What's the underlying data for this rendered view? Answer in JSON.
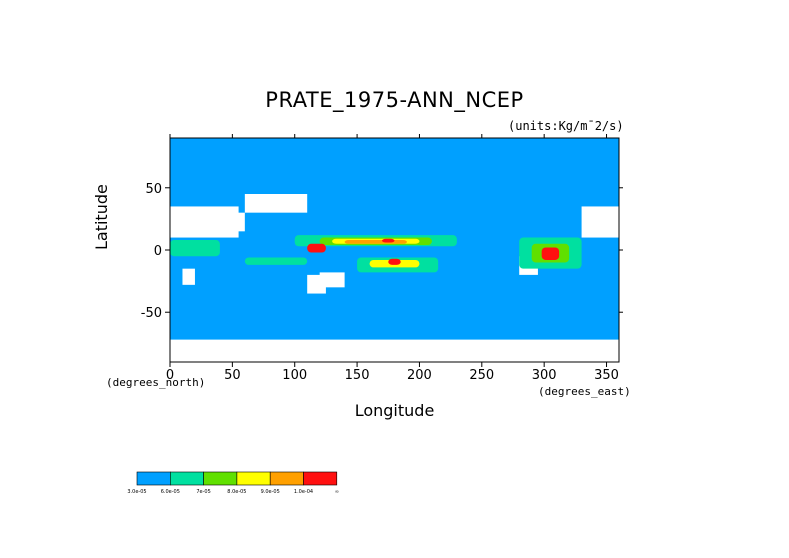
{
  "chart_data": {
    "type": "heatmap",
    "title": "PRATE_1975-ANN_NCEP",
    "units": "(units:Kg/m¯2/s)",
    "xlabel": "Longitude",
    "ylabel": "Latitude",
    "x_unit_note": "(degrees_east)",
    "y_unit_note": "(degrees_north)",
    "xlim": [
      0,
      360
    ],
    "ylim": [
      -90,
      90
    ],
    "xticks": [
      0,
      50,
      100,
      150,
      200,
      250,
      300,
      350
    ],
    "yticks": [
      -50,
      0,
      50
    ],
    "colorbar": {
      "colors": [
        "#00a0ff",
        "#00e0a0",
        "#60e000",
        "#ffff00",
        "#ffa000",
        "#ff1010"
      ],
      "labels": [
        "3.0e-05",
        "6.0e-05",
        "7e-05",
        "8.0e-05",
        "9.0e-05",
        "1.0e-04",
        "∞"
      ]
    },
    "no_data_color": "#ffffff",
    "regions": [
      {
        "level": 0,
        "lon": [
          0,
          360
        ],
        "lat": [
          -90,
          90
        ]
      },
      {
        "level": -1,
        "lon": [
          330,
          360
        ],
        "lat": [
          10,
          35
        ]
      },
      {
        "level": -1,
        "lon": [
          0,
          55
        ],
        "lat": [
          10,
          35
        ]
      },
      {
        "level": -1,
        "lon": [
          45,
          60
        ],
        "lat": [
          15,
          30
        ]
      },
      {
        "level": -1,
        "lon": [
          60,
          110
        ],
        "lat": [
          30,
          45
        ]
      },
      {
        "level": -1,
        "lon": [
          110,
          125
        ],
        "lat": [
          -35,
          -20
        ]
      },
      {
        "level": -1,
        "lon": [
          120,
          140
        ],
        "lat": [
          -30,
          -18
        ]
      },
      {
        "level": -1,
        "lon": [
          10,
          20
        ],
        "lat": [
          -28,
          -15
        ]
      },
      {
        "level": -1,
        "lon": [
          0,
          360
        ],
        "lat": [
          -90,
          -72
        ]
      },
      {
        "level": -1,
        "lon": [
          280,
          295
        ],
        "lat": [
          -20,
          -5
        ]
      },
      {
        "level": 1,
        "lon": [
          0,
          40
        ],
        "lat": [
          -5,
          8
        ]
      },
      {
        "level": 1,
        "lon": [
          100,
          230
        ],
        "lat": [
          3,
          12
        ]
      },
      {
        "level": 1,
        "lon": [
          60,
          110
        ],
        "lat": [
          -12,
          -6
        ]
      },
      {
        "level": 1,
        "lon": [
          150,
          215
        ],
        "lat": [
          -18,
          -6
        ]
      },
      {
        "level": 1,
        "lon": [
          280,
          330
        ],
        "lat": [
          -15,
          10
        ]
      },
      {
        "level": 2,
        "lon": [
          120,
          210
        ],
        "lat": [
          4,
          10
        ]
      },
      {
        "level": 2,
        "lon": [
          290,
          320
        ],
        "lat": [
          -10,
          5
        ]
      },
      {
        "level": 3,
        "lon": [
          130,
          200
        ],
        "lat": [
          5,
          9
        ]
      },
      {
        "level": 3,
        "lon": [
          160,
          200
        ],
        "lat": [
          -14,
          -8
        ]
      },
      {
        "level": 4,
        "lon": [
          140,
          190
        ],
        "lat": [
          5,
          8
        ]
      },
      {
        "level": 5,
        "lon": [
          110,
          125
        ],
        "lat": [
          -2,
          5
        ]
      },
      {
        "level": 5,
        "lon": [
          175,
          185
        ],
        "lat": [
          -12,
          -7
        ]
      },
      {
        "level": 5,
        "lon": [
          298,
          312
        ],
        "lat": [
          -8,
          2
        ]
      },
      {
        "level": 5,
        "lon": [
          170,
          180
        ],
        "lat": [
          6,
          9
        ]
      }
    ]
  }
}
